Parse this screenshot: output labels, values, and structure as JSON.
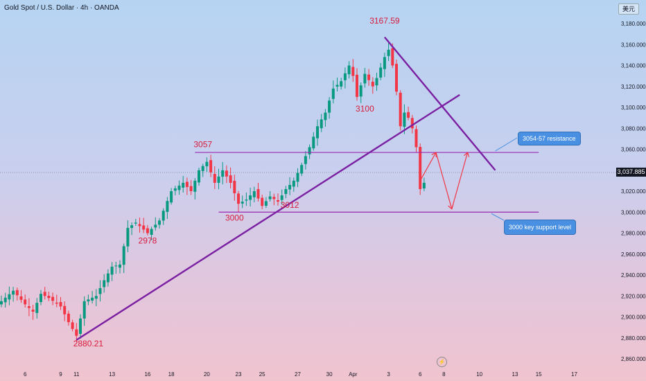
{
  "header": {
    "title": "Gold Spot / U.S. Dollar · 4h · OANDA",
    "currency": "美元"
  },
  "price_tag": "3,037.885",
  "chart_data": {
    "type": "candlestick",
    "title": "Gold Spot / U.S. Dollar · 4h · OANDA",
    "ylim": [
      2855,
      3195
    ],
    "y_ticks": [
      2860,
      2880,
      2900,
      2920,
      2940,
      2960,
      2980,
      3000,
      3020,
      3040,
      3060,
      3080,
      3100,
      3120,
      3140,
      3160,
      3180
    ],
    "y_tick_labels": [
      "2,860.000",
      "2,880.000",
      "2,900.000",
      "2,920.000",
      "2,940.000",
      "2,960.000",
      "2,980.000",
      "3,000.000",
      "3,020.000",
      "3,040.000",
      "3,060.000",
      "3,080.000",
      "3,100.000",
      "3,120.000",
      "3,140.000",
      "3,160.000",
      "3,180.000"
    ],
    "x_ticks": [
      {
        "label": "6",
        "bar": 6
      },
      {
        "label": "9",
        "bar": 15
      },
      {
        "label": "11",
        "bar": 19
      },
      {
        "label": "13",
        "bar": 28
      },
      {
        "label": "16",
        "bar": 37
      },
      {
        "label": "18",
        "bar": 43
      },
      {
        "label": "20",
        "bar": 52
      },
      {
        "label": "23",
        "bar": 60
      },
      {
        "label": "25",
        "bar": 66
      },
      {
        "label": "27",
        "bar": 75
      },
      {
        "label": "30",
        "bar": 83
      },
      {
        "label": "Apr",
        "bar": 89
      },
      {
        "label": "3",
        "bar": 98
      },
      {
        "label": "6",
        "bar": 106
      },
      {
        "label": "8",
        "bar": 112
      },
      {
        "label": "10",
        "bar": 121
      },
      {
        "label": "13",
        "bar": 130
      },
      {
        "label": "15",
        "bar": 136
      },
      {
        "label": "17",
        "bar": 145
      }
    ],
    "close_keypoints": [
      [
        0,
        2915
      ],
      [
        3,
        2925
      ],
      [
        6,
        2912
      ],
      [
        8,
        2905
      ],
      [
        10,
        2922
      ],
      [
        12,
        2918
      ],
      [
        15,
        2910
      ],
      [
        17,
        2895
      ],
      [
        19,
        2882
      ],
      [
        21,
        2915
      ],
      [
        24,
        2920
      ],
      [
        26,
        2935
      ],
      [
        28,
        2948
      ],
      [
        30,
        2950
      ],
      [
        32,
        2985
      ],
      [
        34,
        2990
      ],
      [
        37,
        2980
      ],
      [
        40,
        2992
      ],
      [
        43,
        3020
      ],
      [
        46,
        3028
      ],
      [
        48,
        3020
      ],
      [
        50,
        3040
      ],
      [
        52,
        3048
      ],
      [
        54,
        3028
      ],
      [
        56,
        3040
      ],
      [
        58,
        3028
      ],
      [
        60,
        3008
      ],
      [
        62,
        3012
      ],
      [
        64,
        3020
      ],
      [
        66,
        3006
      ],
      [
        68,
        3015
      ],
      [
        70,
        3010
      ],
      [
        72,
        3022
      ],
      [
        74,
        3030
      ],
      [
        76,
        3045
      ],
      [
        78,
        3062
      ],
      [
        80,
        3082
      ],
      [
        82,
        3095
      ],
      [
        84,
        3118
      ],
      [
        86,
        3125
      ],
      [
        88,
        3140
      ],
      [
        89,
        3130
      ],
      [
        90,
        3110
      ],
      [
        92,
        3132
      ],
      [
        94,
        3120
      ],
      [
        95,
        3128
      ],
      [
        97,
        3148
      ],
      [
        98,
        3155
      ],
      [
        99,
        3140
      ],
      [
        100,
        3115
      ],
      [
        101,
        3082
      ],
      [
        102,
        3095
      ],
      [
        103,
        3090
      ],
      [
        104,
        3080
      ],
      [
        105,
        3062
      ],
      [
        106,
        3022
      ],
      [
        107,
        3028
      ]
    ],
    "levels": [
      {
        "label": "3054-57 resistance",
        "price": 3057,
        "bar_from": 49,
        "bar_to": 136
      },
      {
        "label": "3000 key support level",
        "price": 3000,
        "bar_from": 55,
        "bar_to": 136
      }
    ],
    "trendlines": [
      {
        "name": "rising-support",
        "from": [
          19,
          2878
        ],
        "to": [
          116,
          3112
        ]
      },
      {
        "name": "falling-resistance",
        "from": [
          97,
          3167
        ],
        "to": [
          125,
          3040
        ]
      }
    ],
    "projection": [
      [
        106,
        3030
      ],
      [
        110,
        3057
      ],
      [
        114,
        3003
      ],
      [
        118,
        3057
      ]
    ],
    "annotations": [
      {
        "text": "3167.59",
        "bar": 97,
        "price": 3180
      },
      {
        "text": "3100",
        "bar": 92,
        "price": 3096
      },
      {
        "text": "3057",
        "bar": 51,
        "price": 3062
      },
      {
        "text": "3000",
        "bar": 59,
        "price": 2992
      },
      {
        "text": "3012",
        "bar": 73,
        "price": 3004
      },
      {
        "text": "2978",
        "bar": 37,
        "price": 2970
      },
      {
        "text": "2880.21",
        "bar": 22,
        "price": 2872
      }
    ]
  },
  "callouts": {
    "resistance": "3054-57 resistance",
    "support": "3000 key support level"
  }
}
